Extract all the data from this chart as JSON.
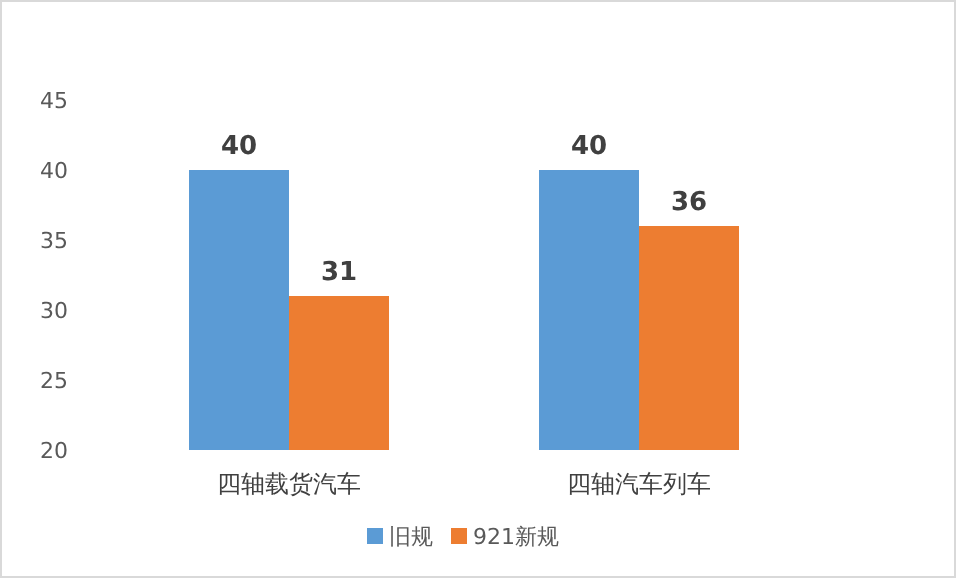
{
  "chart_data": {
    "type": "bar",
    "categories": [
      "四轴载货汽车",
      "四轴汽车列车"
    ],
    "series": [
      {
        "name": "旧规",
        "color": "#5b9bd5",
        "values": [
          40,
          40
        ]
      },
      {
        "name": "921新规",
        "color": "#ed7d31",
        "values": [
          31,
          36
        ]
      }
    ],
    "ylim": [
      20,
      45
    ],
    "yticks": [
      20,
      25,
      30,
      35,
      40,
      45
    ],
    "data_labels": true,
    "legend": "bottom"
  }
}
